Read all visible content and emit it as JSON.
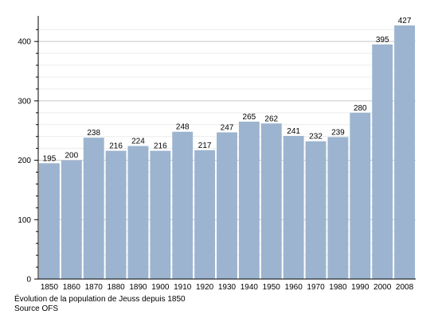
{
  "chart_data": {
    "type": "bar",
    "categories": [
      "1850",
      "1860",
      "1870",
      "1880",
      "1890",
      "1900",
      "1910",
      "1920",
      "1930",
      "1940",
      "1950",
      "1960",
      "1970",
      "1980",
      "1990",
      "2000",
      "2008"
    ],
    "values": [
      195,
      200,
      238,
      216,
      224,
      216,
      248,
      217,
      247,
      265,
      262,
      241,
      232,
      239,
      280,
      395,
      427
    ],
    "ylim": [
      0,
      427
    ],
    "yticks": [
      0,
      100,
      200,
      300,
      400
    ],
    "grid": true,
    "bar_color": "#9cb4cf",
    "title": "",
    "xlabel": "",
    "ylabel": ""
  },
  "caption": {
    "line1": "Évolution de la population de Jeuss depuis 1850",
    "line2": "Source OFS"
  }
}
